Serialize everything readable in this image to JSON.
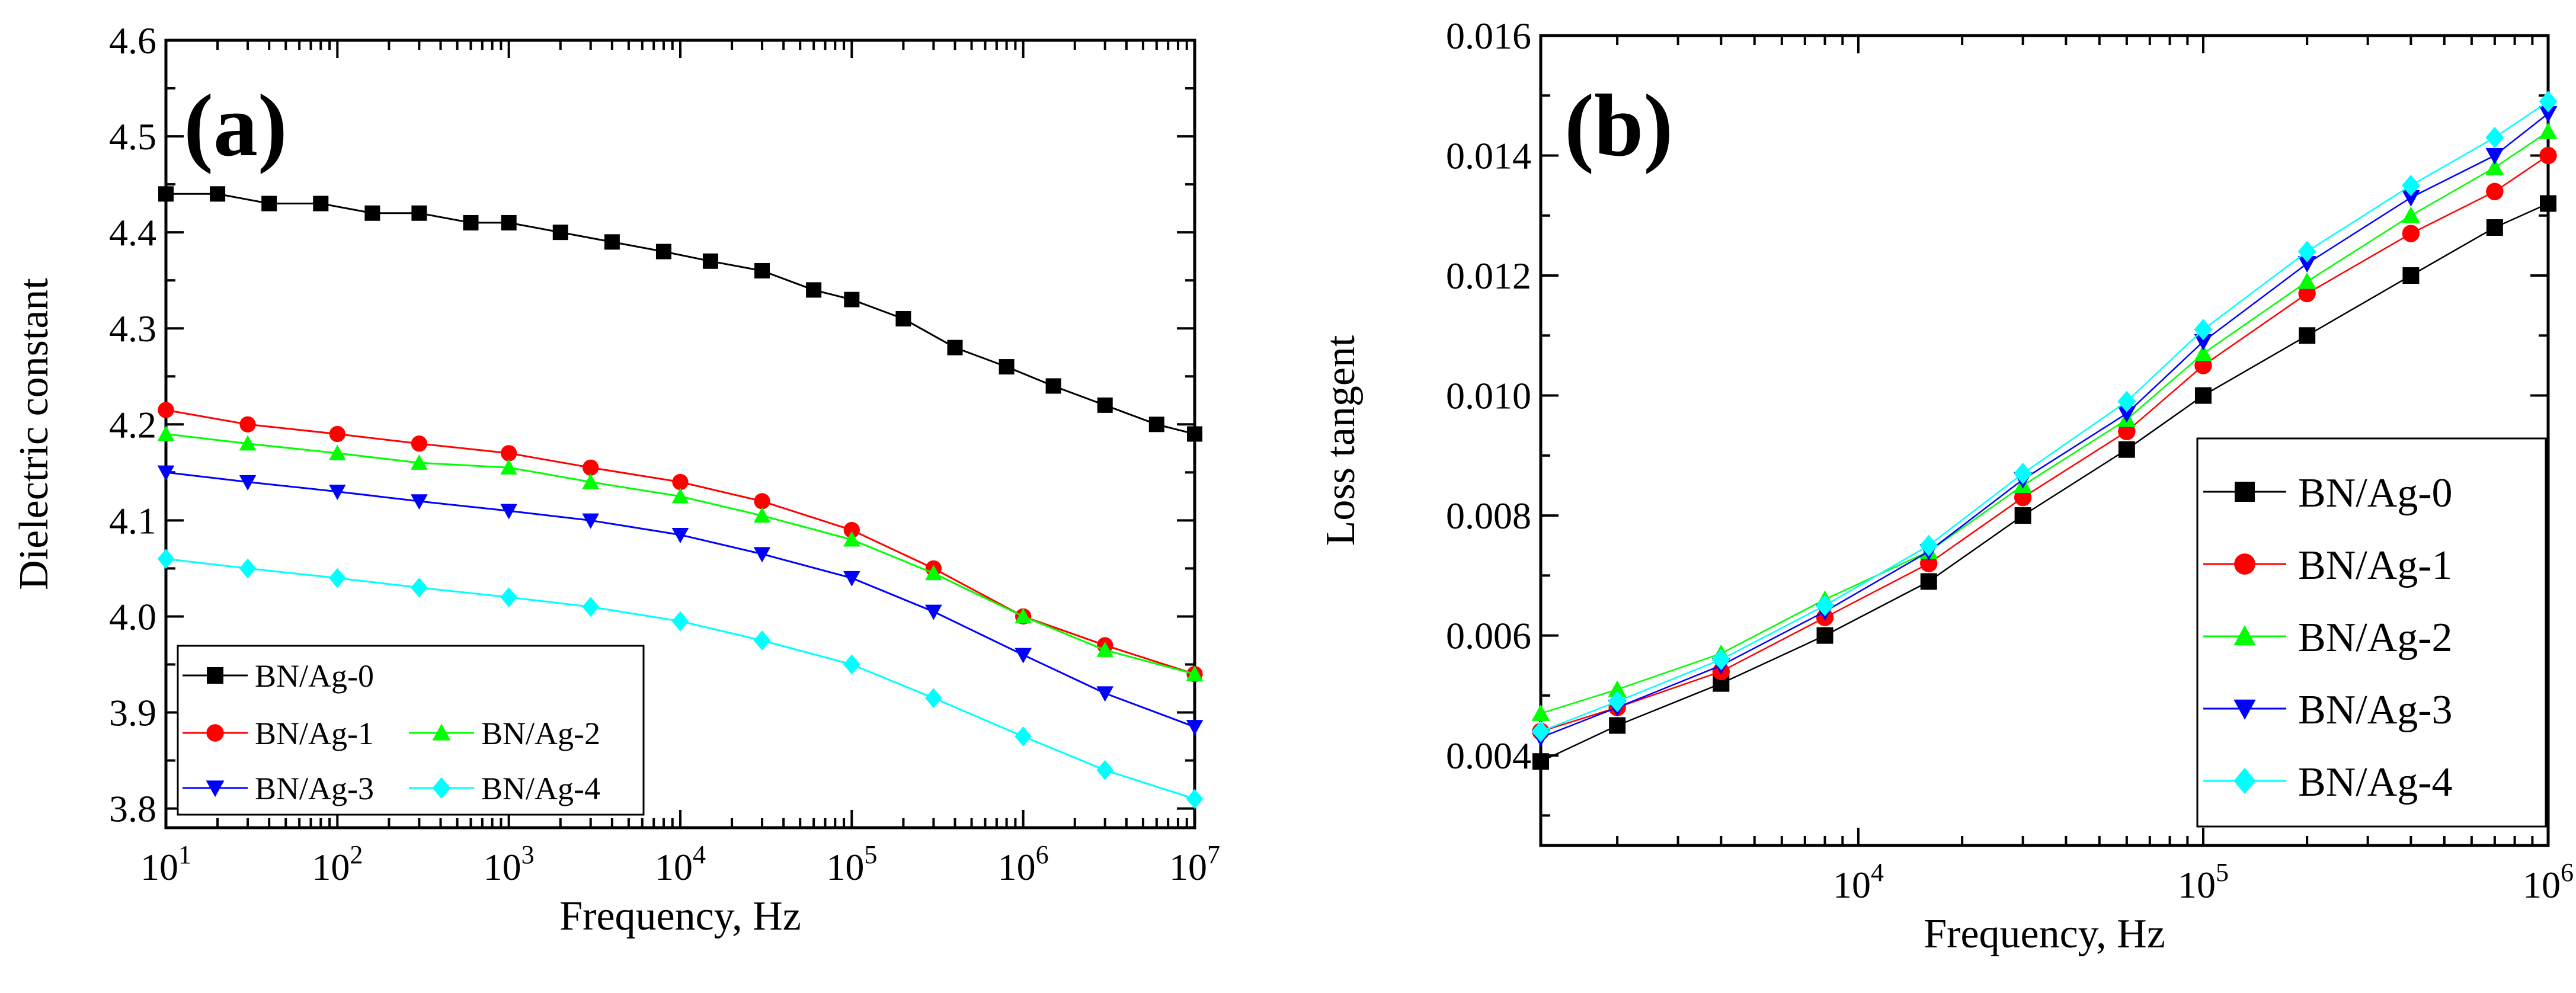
{
  "figure": {
    "panel_a": {
      "tag": "(a)"
    },
    "panel_b": {
      "tag": "(b)"
    }
  },
  "chart_data": [
    {
      "type": "line",
      "panel": "(a)",
      "xlabel": "Frequency,  Hz",
      "ylabel": "Dielectric constant",
      "xscale": "log",
      "xlim": [
        10,
        10000000
      ],
      "ylim": [
        3.78,
        4.6
      ],
      "xticks": [
        {
          "value": 10,
          "base": "10",
          "exp": "1"
        },
        {
          "value": 100,
          "base": "10",
          "exp": "2"
        },
        {
          "value": 1000,
          "base": "10",
          "exp": "3"
        },
        {
          "value": 10000,
          "base": "10",
          "exp": "4"
        },
        {
          "value": 100000,
          "base": "10",
          "exp": "5"
        },
        {
          "value": 1000000,
          "base": "10",
          "exp": "6"
        },
        {
          "value": 10000000,
          "base": "10",
          "exp": "7"
        }
      ],
      "yticks": [
        "3.8",
        "3.9",
        "4.0",
        "4.1",
        "4.2",
        "4.3",
        "4.4",
        "4.5",
        "4.6"
      ],
      "grid": false,
      "legend_position": "bottom-left",
      "legend_columns": 2,
      "series": [
        {
          "name": "BN/Ag-0",
          "color": "#000000",
          "marker": "square",
          "points": [
            [
              10,
              4.44
            ],
            [
              20,
              4.44
            ],
            [
              40,
              4.43
            ],
            [
              80,
              4.43
            ],
            [
              160,
              4.42
            ],
            [
              300,
              4.42
            ],
            [
              600,
              4.41
            ],
            [
              1000,
              4.41
            ],
            [
              2000,
              4.4
            ],
            [
              4000,
              4.39
            ],
            [
              8000,
              4.38
            ],
            [
              15000,
              4.37
            ],
            [
              30000,
              4.36
            ],
            [
              60000,
              4.34
            ],
            [
              100000,
              4.33
            ],
            [
              200000,
              4.31
            ],
            [
              400000,
              4.28
            ],
            [
              800000,
              4.26
            ],
            [
              1500000,
              4.24
            ],
            [
              3000000,
              4.22
            ],
            [
              6000000,
              4.2
            ],
            [
              10000000,
              4.19
            ]
          ]
        },
        {
          "name": "BN/Ag-1",
          "color": "#ff0000",
          "marker": "circle",
          "points": [
            [
              10,
              4.215
            ],
            [
              30,
              4.2
            ],
            [
              100,
              4.19
            ],
            [
              300,
              4.18
            ],
            [
              1000,
              4.17
            ],
            [
              3000,
              4.155
            ],
            [
              10000,
              4.14
            ],
            [
              30000,
              4.12
            ],
            [
              100000,
              4.09
            ],
            [
              300000,
              4.05
            ],
            [
              1000000,
              4.0
            ],
            [
              3000000,
              3.97
            ],
            [
              10000000,
              3.94
            ]
          ]
        },
        {
          "name": "BN/Ag-2",
          "color": "#00ff00",
          "marker": "triangle-up",
          "points": [
            [
              10,
              4.19
            ],
            [
              30,
              4.18
            ],
            [
              100,
              4.17
            ],
            [
              300,
              4.16
            ],
            [
              1000,
              4.155
            ],
            [
              3000,
              4.14
            ],
            [
              10000,
              4.125
            ],
            [
              30000,
              4.105
            ],
            [
              100000,
              4.08
            ],
            [
              300000,
              4.045
            ],
            [
              1000000,
              4.0
            ],
            [
              3000000,
              3.965
            ],
            [
              10000000,
              3.94
            ]
          ]
        },
        {
          "name": "BN/Ag-3",
          "color": "#0000ff",
          "marker": "triangle-down",
          "points": [
            [
              10,
              4.15
            ],
            [
              30,
              4.14
            ],
            [
              100,
              4.13
            ],
            [
              300,
              4.12
            ],
            [
              1000,
              4.11
            ],
            [
              3000,
              4.1
            ],
            [
              10000,
              4.085
            ],
            [
              30000,
              4.065
            ],
            [
              100000,
              4.04
            ],
            [
              300000,
              4.005
            ],
            [
              1000000,
              3.96
            ],
            [
              3000000,
              3.92
            ],
            [
              10000000,
              3.885
            ]
          ]
        },
        {
          "name": "BN/Ag-4",
          "color": "#00ffff",
          "marker": "diamond",
          "points": [
            [
              10,
              4.06
            ],
            [
              30,
              4.05
            ],
            [
              100,
              4.04
            ],
            [
              300,
              4.03
            ],
            [
              1000,
              4.02
            ],
            [
              3000,
              4.01
            ],
            [
              10000,
              3.995
            ],
            [
              30000,
              3.975
            ],
            [
              100000,
              3.95
            ],
            [
              300000,
              3.915
            ],
            [
              1000000,
              3.875
            ],
            [
              3000000,
              3.84
            ],
            [
              10000000,
              3.81
            ]
          ]
        }
      ]
    },
    {
      "type": "line",
      "panel": "(b)",
      "xlabel": "Frequency,  Hz",
      "ylabel": "Loss tangent",
      "xscale": "log",
      "xlim": [
        1200,
        1000000
      ],
      "ylim": [
        0.0025,
        0.016
      ],
      "xticks": [
        {
          "value": 10000,
          "base": "10",
          "exp": "4"
        },
        {
          "value": 100000,
          "base": "10",
          "exp": "5"
        },
        {
          "value": 1000000,
          "base": "10",
          "exp": "6"
        }
      ],
      "yticks": [
        "0.004",
        "0.006",
        "0.008",
        "0.010",
        "0.012",
        "0.014",
        "0.016"
      ],
      "grid": false,
      "legend_position": "bottom-right",
      "legend_columns": 1,
      "series": [
        {
          "name": "BN/Ag-0",
          "color": "#000000",
          "marker": "square",
          "points": [
            [
              1200,
              0.0039
            ],
            [
              2000,
              0.0045
            ],
            [
              4000,
              0.0052
            ],
            [
              8000,
              0.006
            ],
            [
              16000,
              0.0069
            ],
            [
              30000,
              0.008
            ],
            [
              60000,
              0.0091
            ],
            [
              100000,
              0.01
            ],
            [
              200000,
              0.011
            ],
            [
              400000,
              0.012
            ],
            [
              700000,
              0.0128
            ],
            [
              1000000,
              0.0132
            ]
          ]
        },
        {
          "name": "BN/Ag-1",
          "color": "#ff0000",
          "marker": "circle",
          "points": [
            [
              1200,
              0.0044
            ],
            [
              2000,
              0.0048
            ],
            [
              4000,
              0.0054
            ],
            [
              8000,
              0.0063
            ],
            [
              16000,
              0.0072
            ],
            [
              30000,
              0.0083
            ],
            [
              60000,
              0.0094
            ],
            [
              100000,
              0.0105
            ],
            [
              200000,
              0.0117
            ],
            [
              400000,
              0.0127
            ],
            [
              700000,
              0.0134
            ],
            [
              1000000,
              0.014
            ]
          ]
        },
        {
          "name": "BN/Ag-2",
          "color": "#00ff00",
          "marker": "triangle-up",
          "points": [
            [
              1200,
              0.0047
            ],
            [
              2000,
              0.0051
            ],
            [
              4000,
              0.0057
            ],
            [
              8000,
              0.0066
            ],
            [
              16000,
              0.0074
            ],
            [
              30000,
              0.0085
            ],
            [
              60000,
              0.0096
            ],
            [
              100000,
              0.0107
            ],
            [
              200000,
              0.0119
            ],
            [
              400000,
              0.013
            ],
            [
              700000,
              0.0138
            ],
            [
              1000000,
              0.0144
            ]
          ]
        },
        {
          "name": "BN/Ag-3",
          "color": "#0000ff",
          "marker": "triangle-down",
          "points": [
            [
              1200,
              0.0043
            ],
            [
              2000,
              0.0048
            ],
            [
              4000,
              0.0055
            ],
            [
              8000,
              0.0064
            ],
            [
              16000,
              0.0074
            ],
            [
              30000,
              0.0086
            ],
            [
              60000,
              0.0097
            ],
            [
              100000,
              0.0109
            ],
            [
              200000,
              0.0122
            ],
            [
              400000,
              0.0133
            ],
            [
              700000,
              0.014
            ],
            [
              1000000,
              0.0147
            ]
          ]
        },
        {
          "name": "BN/Ag-4",
          "color": "#00ffff",
          "marker": "diamond",
          "points": [
            [
              1200,
              0.0044
            ],
            [
              2000,
              0.0049
            ],
            [
              4000,
              0.0056
            ],
            [
              8000,
              0.0065
            ],
            [
              16000,
              0.0075
            ],
            [
              30000,
              0.0087
            ],
            [
              60000,
              0.0099
            ],
            [
              100000,
              0.0111
            ],
            [
              200000,
              0.0124
            ],
            [
              400000,
              0.0135
            ],
            [
              700000,
              0.0143
            ],
            [
              1000000,
              0.0149
            ]
          ]
        }
      ]
    }
  ]
}
